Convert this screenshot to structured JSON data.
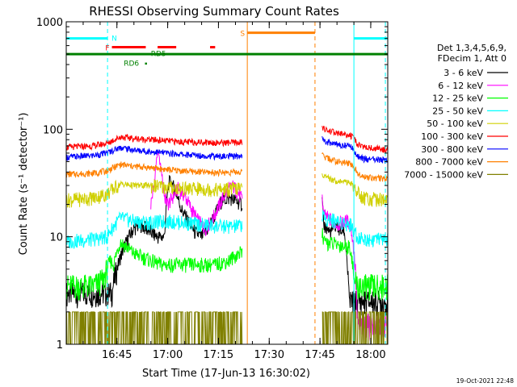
{
  "chart_data": {
    "type": "line",
    "title": "RHESSI Observing Summary Count Rates",
    "xlabel": "Start Time (17-Jun-13 16:30:02)",
    "ylabel": "Count Rate (s⁻¹ detector⁻¹)",
    "yscale": "log",
    "ylim": [
      1,
      1000
    ],
    "xlim_minutes": [
      0,
      95
    ],
    "x_ticks": [
      {
        "t": 14.97,
        "label": "16:45"
      },
      {
        "t": 29.97,
        "label": "17:00"
      },
      {
        "t": 44.97,
        "label": "17:15"
      },
      {
        "t": 59.97,
        "label": "17:30"
      },
      {
        "t": 74.97,
        "label": "17:45"
      },
      {
        "t": 89.97,
        "label": "18:00"
      }
    ],
    "y_ticks": [
      {
        "v": 1,
        "label": "1"
      },
      {
        "v": 10,
        "label": "10"
      },
      {
        "v": 100,
        "label": "100"
      },
      {
        "v": 1000,
        "label": "1000"
      }
    ],
    "legend": {
      "placement": "right",
      "header": [
        "Det 1,3,4,5,6,9,",
        "FDecim 1, Att 0"
      ]
    },
    "series": [
      {
        "name": "3 - 6 keV",
        "color": "#000000",
        "x": [
          0,
          9,
          11,
          13.5,
          20,
          22,
          25,
          27,
          29,
          30.5,
          32,
          34,
          36,
          38,
          40,
          42,
          44,
          46,
          48.5,
          52,
          75.5,
          76,
          78,
          80,
          81,
          82,
          83.5,
          84,
          86,
          95
        ],
        "y": [
          3,
          3,
          3,
          3,
          12,
          13,
          11,
          10,
          10,
          35,
          28,
          18,
          14,
          11,
          10,
          12,
          16,
          22,
          23,
          20,
          24,
          13,
          11,
          13,
          11,
          12,
          2.7,
          2.5,
          2.5,
          2.5
        ]
      },
      {
        "name": "6 - 12 keV",
        "color": "#ff00ff",
        "x": [
          25,
          26,
          27,
          29,
          30,
          31,
          33,
          35,
          37,
          39,
          41,
          43,
          45,
          47,
          49,
          50,
          52,
          75.5,
          76,
          80,
          83,
          84,
          86,
          87.5,
          88,
          95
        ],
        "y": [
          20,
          30,
          62,
          24,
          20,
          22,
          28,
          24,
          18,
          14,
          12,
          14,
          19,
          25,
          30,
          28,
          22,
          26,
          16,
          13,
          14,
          13,
          1.5,
          1.5,
          1.5,
          1.5
        ]
      },
      {
        "name": "12 - 25 keV",
        "color": "#00ff00",
        "x": [
          0,
          8,
          11,
          13,
          14,
          16,
          20,
          25,
          28,
          32,
          36,
          40,
          44,
          48,
          51,
          52,
          75.5,
          76,
          80,
          84,
          85,
          86,
          90,
          95
        ],
        "y": [
          3.5,
          3.5,
          4,
          6,
          5.5,
          9,
          7,
          6,
          5.5,
          5.5,
          5.5,
          5.5,
          5.5,
          6,
          7,
          7.5,
          12,
          9,
          8.5,
          8,
          4,
          3.5,
          3.5,
          3.5
        ]
      },
      {
        "name": "25 - 50 keV",
        "color": "#00ffff",
        "x": [
          0,
          8,
          12,
          16,
          20,
          25,
          30,
          35,
          40,
          45,
          50,
          52,
          75.5,
          76,
          80,
          84,
          86,
          88,
          92,
          95
        ],
        "y": [
          9,
          9.5,
          10,
          15,
          14,
          13.5,
          14,
          13.5,
          13,
          12.5,
          12.5,
          13,
          17,
          15,
          14,
          13,
          10,
          9.5,
          9.5,
          9.5
        ]
      },
      {
        "name": "50 - 100 keV",
        "color": "#d0d000",
        "x": [
          0,
          8,
          12,
          16,
          20,
          25,
          30,
          35,
          40,
          45,
          50,
          52,
          75.5,
          76,
          80,
          84,
          86,
          88,
          92,
          95
        ],
        "y": [
          22,
          23,
          25,
          31,
          30,
          30,
          29,
          28,
          28,
          27.5,
          28,
          28,
          40,
          36,
          33,
          32,
          26,
          23,
          22.5,
          22.5
        ]
      },
      {
        "name": "100 - 300 keV",
        "color": "#ff0000",
        "x": [
          0,
          8,
          12,
          16,
          20,
          25,
          30,
          35,
          40,
          45,
          50,
          52,
          75.5,
          76,
          80,
          84,
          86,
          88,
          92,
          95
        ],
        "y": [
          68,
          70,
          74,
          85,
          82,
          80,
          78,
          76,
          76,
          75,
          75,
          76,
          110,
          100,
          92,
          88,
          73,
          68,
          66,
          64
        ]
      },
      {
        "name": "300 - 800 keV",
        "color": "#0000ff",
        "x": [
          0,
          8,
          12,
          16,
          20,
          25,
          30,
          35,
          40,
          45,
          50,
          52,
          75.5,
          76,
          80,
          84,
          86,
          88,
          92,
          95
        ],
        "y": [
          55,
          57,
          60,
          68,
          64,
          62,
          60,
          58,
          57,
          56,
          56,
          57,
          82,
          78,
          72,
          70,
          57,
          53,
          52,
          51
        ]
      },
      {
        "name": "800 - 7000 keV",
        "color": "#ff8000",
        "x": [
          0,
          8,
          12,
          16,
          20,
          25,
          30,
          35,
          40,
          45,
          50,
          52,
          75.5,
          76,
          80,
          84,
          86,
          88,
          92,
          95
        ],
        "y": [
          38,
          39,
          41,
          47,
          45,
          44,
          42,
          41,
          40,
          39.5,
          40,
          40,
          58,
          55,
          50,
          48,
          40,
          36,
          35,
          35
        ]
      },
      {
        "name": "7000 - 15000 keV",
        "color": "#808000",
        "x": [
          0,
          12,
          20,
          30,
          40,
          52,
          75.5,
          80,
          86,
          95
        ],
        "y": [
          2,
          2,
          2,
          2,
          2,
          2,
          2,
          2,
          2,
          2
        ]
      }
    ],
    "annotations": [
      {
        "label": "N",
        "color": "#00ffff",
        "segments": [
          [
            0,
            12.2
          ],
          [
            85,
            95
          ]
        ],
        "level": 700
      },
      {
        "label": "S",
        "color": "#ff8000",
        "segments": [
          [
            53.5,
            73.5
          ]
        ],
        "level": 790
      },
      {
        "label": "F",
        "color": "#ff0000",
        "segments": [
          [
            13.5,
            23.5
          ],
          [
            27,
            32.5
          ],
          [
            42.5,
            44
          ]
        ],
        "level": 580
      },
      {
        "label": "RD5",
        "color": "#008000",
        "level": 505
      },
      {
        "label": "RD6",
        "color": "#008000",
        "level": 410
      }
    ],
    "saa_line": {
      "color": "#008000",
      "level": 500
    },
    "vertical_lines": [
      {
        "t": 0.0,
        "color": "#00ffff",
        "style": "solid"
      },
      {
        "t": 12.2,
        "color": "#00ffff",
        "style": "dash"
      },
      {
        "t": 53.5,
        "color": "#ff8000",
        "style": "solid"
      },
      {
        "t": 73.5,
        "color": "#ff8000",
        "style": "dash"
      },
      {
        "t": 85.0,
        "color": "#00ffff",
        "style": "solid"
      },
      {
        "t": 94.3,
        "color": "#00ffff",
        "style": "dash"
      }
    ],
    "gaps": [
      [
        52,
        75.5
      ]
    ],
    "footer_date": "19-Oct-2021 22:48"
  }
}
